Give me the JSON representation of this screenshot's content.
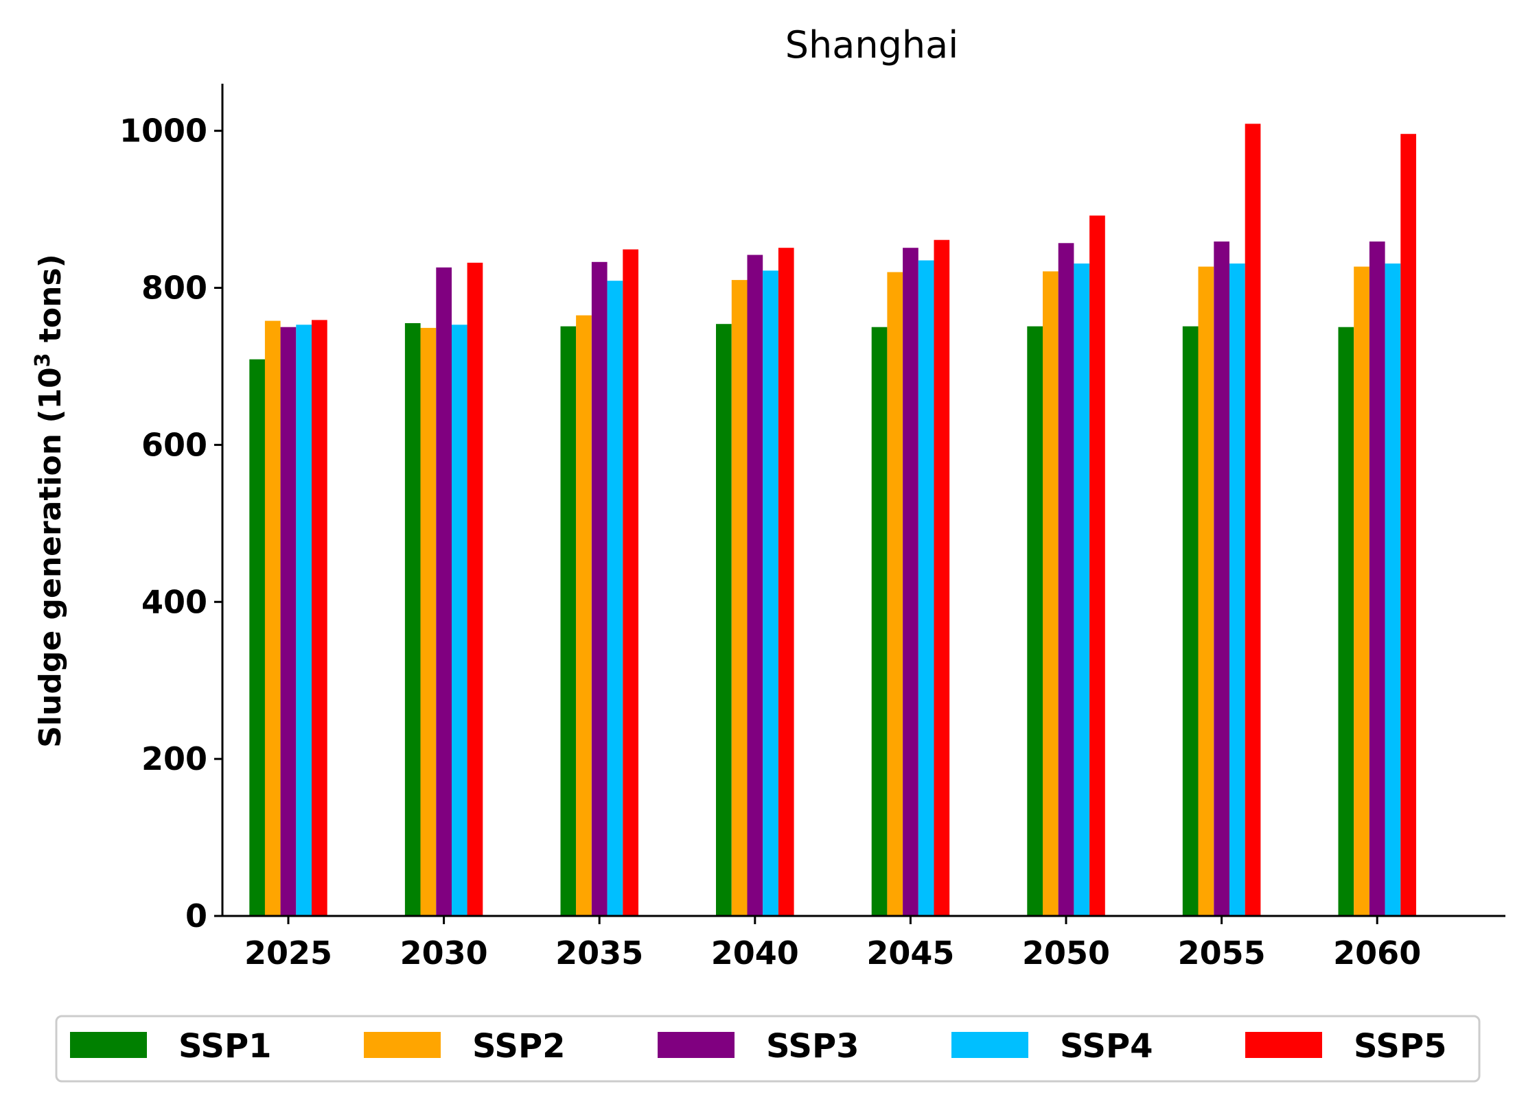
{
  "chart_data": {
    "type": "bar",
    "title": "Shanghai",
    "ylabel": {
      "prefix": "Sludge generation (10",
      "superscript": "3",
      "suffix": " tons)"
    },
    "xlabel": "",
    "ylim": [
      0,
      1060
    ],
    "yticks": [
      0,
      200,
      400,
      600,
      800,
      1000
    ],
    "categories": [
      "2025",
      "2030",
      "2035",
      "2040",
      "2045",
      "2050",
      "2055",
      "2060"
    ],
    "series": [
      {
        "name": "SSP1",
        "color": "#008000",
        "values": [
          709,
          755,
          751,
          754,
          750,
          751,
          751,
          750
        ]
      },
      {
        "name": "SSP2",
        "color": "#FFA500",
        "values": [
          758,
          749,
          765,
          810,
          820,
          821,
          827,
          827
        ]
      },
      {
        "name": "SSP3",
        "color": "#800080",
        "values": [
          750,
          826,
          833,
          842,
          851,
          857,
          859,
          859
        ]
      },
      {
        "name": "SSP4",
        "color": "#00BFFF",
        "values": [
          753,
          753,
          809,
          822,
          835,
          831,
          831,
          831
        ]
      },
      {
        "name": "SSP5",
        "color": "#FF0000",
        "values": [
          759,
          832,
          849,
          851,
          861,
          892,
          1009,
          996
        ]
      }
    ],
    "legend_position": "bottom-center",
    "grid": false
  }
}
